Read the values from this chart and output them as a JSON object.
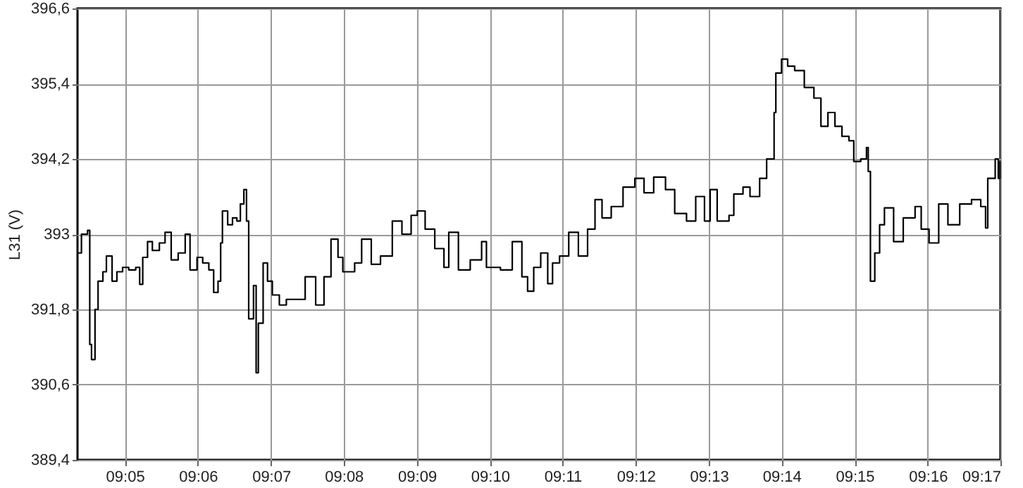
{
  "chart_data": {
    "type": "step",
    "ylabel": "L31 (V)",
    "grid": true,
    "marker": "none",
    "line_style": "solid",
    "xlim": [
      9.0725,
      9.2833
    ],
    "ylim": [
      389.4,
      396.6
    ],
    "xticks": [
      {
        "value": 9.0833,
        "label": "09:05"
      },
      {
        "value": 9.1,
        "label": "09:06"
      },
      {
        "value": 9.1167,
        "label": "09:07"
      },
      {
        "value": 9.1333,
        "label": "09:08"
      },
      {
        "value": 9.15,
        "label": "09:09"
      },
      {
        "value": 9.1667,
        "label": "09:10"
      },
      {
        "value": 9.1833,
        "label": "09:11"
      },
      {
        "value": 9.2,
        "label": "09:12"
      },
      {
        "value": 9.2167,
        "label": "09:13"
      },
      {
        "value": 9.2333,
        "label": "09:14"
      },
      {
        "value": 9.25,
        "label": "09:15"
      },
      {
        "value": 9.2667,
        "label": "09:16"
      },
      {
        "value": 9.2833,
        "label": "09:17"
      }
    ],
    "yticks": [
      {
        "value": 389.4,
        "label": "389,4"
      },
      {
        "value": 390.6,
        "label": "390,6"
      },
      {
        "value": 391.8,
        "label": "391,8"
      },
      393,
      {
        "value": 394.2,
        "label": "394,2"
      },
      {
        "value": 395.4,
        "label": "395,4"
      },
      {
        "value": 396.6,
        "label": "396,6"
      }
    ],
    "series": [
      {
        "color": "#000000",
        "x": [
          9.0725,
          9.0734,
          9.0748,
          9.0753,
          9.0757,
          9.0765,
          9.0772,
          9.0783,
          9.0791,
          9.0804,
          9.0815,
          9.0828,
          9.0842,
          9.0858,
          9.0867,
          9.0874,
          9.0885,
          9.0896,
          9.0912,
          9.0925,
          9.0939,
          9.0955,
          9.0971,
          9.0982,
          9.0998,
          9.1011,
          9.1025,
          9.1036,
          9.1046,
          9.1052,
          9.1056,
          9.1068,
          9.1079,
          9.1089,
          9.1097,
          9.1105,
          9.1111,
          9.1116,
          9.1127,
          9.1133,
          9.1138,
          9.1149,
          9.1159,
          9.117,
          9.1186,
          9.1202,
          9.1224,
          9.1245,
          9.1269,
          9.1288,
          9.1304,
          9.132,
          9.1331,
          9.1358,
          9.1374,
          9.1396,
          9.1417,
          9.1444,
          9.1466,
          9.1487,
          9.1501,
          9.1519,
          9.1541,
          9.1562,
          9.1573,
          9.1595,
          9.1622,
          9.1648,
          9.1659,
          9.1691,
          9.1718,
          9.174,
          9.1753,
          9.1767,
          9.1783,
          9.1799,
          9.181,
          9.1826,
          9.1847,
          9.1869,
          9.189,
          9.1907,
          9.1923,
          9.1944,
          9.1971,
          9.1998,
          9.2019,
          9.2041,
          9.2068,
          9.2089,
          9.2116,
          9.2137,
          9.2157,
          9.217,
          9.2186,
          9.2213,
          9.2224,
          9.2245,
          9.2261,
          9.2283,
          9.2299,
          9.2312,
          9.2316,
          9.232,
          9.2333,
          9.2347,
          9.2363,
          9.2385,
          9.2407,
          9.2423,
          9.2439,
          9.2455,
          9.2471,
          9.2487,
          9.2498,
          9.2514,
          9.2527,
          9.2531,
          9.2536,
          9.2546,
          9.2557,
          9.2568,
          9.2589,
          9.2611,
          9.2638,
          9.2652,
          9.267,
          9.2692,
          9.2713,
          9.274,
          9.2767,
          9.2788,
          9.2799,
          9.2804,
          9.2821,
          9.2828,
          9.2832
        ],
        "values": [
          392.7,
          393.0,
          393.06,
          391.24,
          391.0,
          391.8,
          392.25,
          392.4,
          392.65,
          392.25,
          392.4,
          392.47,
          392.43,
          392.47,
          392.2,
          392.63,
          392.88,
          392.74,
          392.86,
          393.03,
          392.59,
          392.7,
          393.0,
          392.43,
          392.63,
          392.54,
          392.43,
          392.07,
          392.25,
          392.86,
          393.37,
          393.15,
          393.26,
          393.21,
          393.48,
          393.71,
          393.21,
          391.65,
          392.18,
          390.79,
          391.58,
          392.54,
          392.25,
          392.03,
          391.87,
          391.96,
          391.96,
          392.32,
          391.87,
          392.32,
          392.92,
          392.63,
          392.4,
          392.54,
          392.92,
          392.52,
          392.65,
          393.21,
          393.0,
          393.3,
          393.37,
          393.08,
          392.77,
          392.47,
          393.03,
          392.43,
          392.59,
          392.88,
          392.47,
          392.43,
          392.88,
          392.32,
          392.09,
          392.47,
          392.7,
          392.21,
          392.54,
          392.65,
          393.03,
          392.65,
          393.08,
          393.55,
          393.26,
          393.44,
          393.75,
          393.89,
          393.66,
          393.91,
          393.71,
          393.33,
          393.21,
          393.6,
          393.21,
          393.71,
          393.21,
          393.3,
          393.64,
          393.75,
          393.6,
          393.89,
          394.2,
          394.2,
          394.94,
          395.57,
          395.79,
          395.68,
          395.61,
          395.34,
          395.17,
          394.72,
          394.94,
          394.72,
          394.56,
          394.49,
          394.16,
          394.2,
          394.38,
          394.0,
          392.25,
          392.7,
          393.15,
          393.42,
          392.88,
          393.26,
          393.44,
          393.08,
          392.86,
          393.48,
          393.15,
          393.48,
          393.55,
          393.44,
          393.1,
          393.89,
          394.2,
          393.89,
          394.16
        ]
      }
    ]
  }
}
